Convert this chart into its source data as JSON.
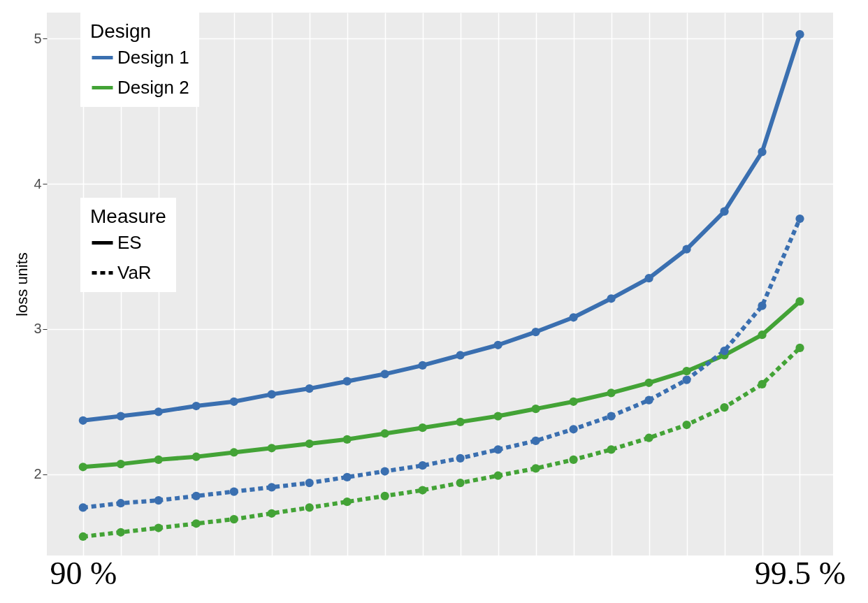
{
  "chart_data": {
    "type": "line",
    "ylabel": "loss units",
    "legend_title": "Design",
    "legend": "top left",
    "grid": true,
    "marker": "circle",
    "annotations": [
      "Measure",
      "ES",
      "VaR"
    ],
    "x": [
      90,
      90.5,
      91,
      91.5,
      92,
      92.5,
      93,
      93.5,
      94,
      94.5,
      95,
      95.5,
      96,
      96.5,
      97,
      97.5,
      98,
      98.5,
      99,
      99.5
    ],
    "xlim": [
      89.52,
      99.94
    ],
    "xticks": [
      {
        "value": 90,
        "label": "90 %"
      },
      {
        "value": 90.5,
        "label": null
      },
      {
        "value": 91,
        "label": null
      },
      {
        "value": 91.5,
        "label": null
      },
      {
        "value": 92,
        "label": null
      },
      {
        "value": 92.5,
        "label": null
      },
      {
        "value": 93,
        "label": null
      },
      {
        "value": 93.5,
        "label": null
      },
      {
        "value": 94,
        "label": null
      },
      {
        "value": 94.5,
        "label": null
      },
      {
        "value": 95,
        "label": null
      },
      {
        "value": 95.5,
        "label": null
      },
      {
        "value": 96,
        "label": null
      },
      {
        "value": 96.5,
        "label": null
      },
      {
        "value": 97,
        "label": null
      },
      {
        "value": 97.5,
        "label": null
      },
      {
        "value": 98,
        "label": null
      },
      {
        "value": 98.5,
        "label": null
      },
      {
        "value": 99,
        "label": null
      },
      {
        "value": 99.5,
        "label": "99.5 %"
      }
    ],
    "ylim": [
      1.44,
      5.18
    ],
    "yticks": [
      2,
      3,
      4,
      5
    ],
    "series": [
      {
        "name": "Design 1",
        "color": "#3a6fb0",
        "line_style": "solid",
        "values": [
          2.37,
          2.4,
          2.43,
          2.47,
          2.5,
          2.55,
          2.59,
          2.64,
          2.69,
          2.75,
          2.82,
          2.89,
          2.98,
          3.08,
          3.21,
          3.35,
          3.55,
          3.81,
          4.22,
          5.03
        ]
      },
      {
        "name": "Design 2",
        "color": "#43a336",
        "line_style": "solid",
        "values": [
          2.05,
          2.07,
          2.1,
          2.12,
          2.15,
          2.18,
          2.21,
          2.24,
          2.28,
          2.32,
          2.36,
          2.4,
          2.45,
          2.5,
          2.56,
          2.63,
          2.71,
          2.82,
          2.96,
          3.19
        ]
      },
      {
        "color": "#3a6fb0",
        "line_style": "dashed",
        "values": [
          1.77,
          1.8,
          1.82,
          1.85,
          1.88,
          1.91,
          1.94,
          1.98,
          2.02,
          2.06,
          2.11,
          2.17,
          2.23,
          2.31,
          2.4,
          2.51,
          2.65,
          2.85,
          3.16,
          3.76
        ]
      },
      {
        "color": "#43a336",
        "line_style": "dashed",
        "values": [
          1.57,
          1.6,
          1.63,
          1.66,
          1.69,
          1.73,
          1.77,
          1.81,
          1.85,
          1.89,
          1.94,
          1.99,
          2.04,
          2.1,
          2.17,
          2.25,
          2.34,
          2.46,
          2.62,
          2.87
        ]
      }
    ]
  }
}
